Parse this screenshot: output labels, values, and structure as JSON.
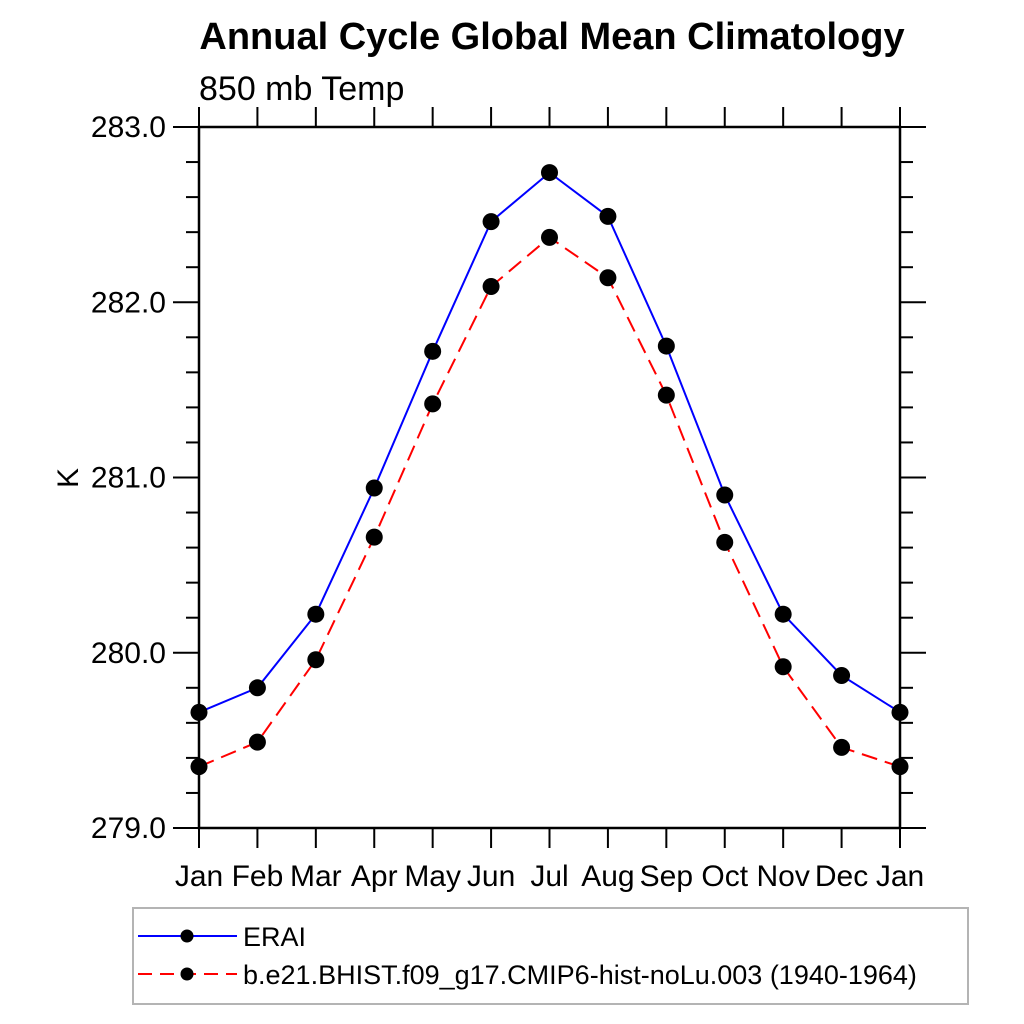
{
  "page": {
    "background_color": "#ffffff"
  },
  "chart_data": {
    "type": "line",
    "title": "Annual Cycle Global Mean Climatology",
    "subtitle": "850 mb Temp",
    "ylabel": "K",
    "xlabel": "",
    "categories": [
      "Jan",
      "Feb",
      "Mar",
      "Apr",
      "May",
      "Jun",
      "Jul",
      "Aug",
      "Sep",
      "Oct",
      "Nov",
      "Dec",
      "Jan"
    ],
    "ylim": [
      279.0,
      283.0
    ],
    "y_major_ticks": [
      279.0,
      280.0,
      281.0,
      282.0,
      283.0
    ],
    "y_major_tick_labels": [
      "279.0",
      "280.0",
      "281.0",
      "282.0",
      "283.0"
    ],
    "y_minor_tick_step": 0.2,
    "grid": false,
    "axis_color": "#000000",
    "marker_color": "#000000",
    "series": [
      {
        "name": "ERAI",
        "color": "#0000ff",
        "line_style": "solid",
        "marker": "filled-circle",
        "values": [
          279.66,
          279.8,
          280.22,
          280.94,
          281.72,
          282.46,
          282.74,
          282.49,
          281.75,
          280.9,
          280.22,
          279.87,
          279.66
        ]
      },
      {
        "name": "b.e21.BHIST.f09_g17.CMIP6-hist-noLu.003 (1940-1964)",
        "color": "#ff0000",
        "line_style": "dashed",
        "marker": "filled-circle",
        "values": [
          279.35,
          279.49,
          279.96,
          280.66,
          281.42,
          282.09,
          282.37,
          282.14,
          281.47,
          280.63,
          279.92,
          279.46,
          279.35
        ]
      }
    ],
    "legend": {
      "position": "below-left",
      "border_color": "#b4b4b4",
      "entries": [
        {
          "label": "ERAI",
          "color": "#0000ff",
          "line_style": "solid",
          "marker": "filled-circle"
        },
        {
          "label": "b.e21.BHIST.f09_g17.CMIP6-hist-noLu.003 (1940-1964)",
          "color": "#ff0000",
          "line_style": "dashed",
          "marker": "filled-circle"
        }
      ]
    }
  }
}
